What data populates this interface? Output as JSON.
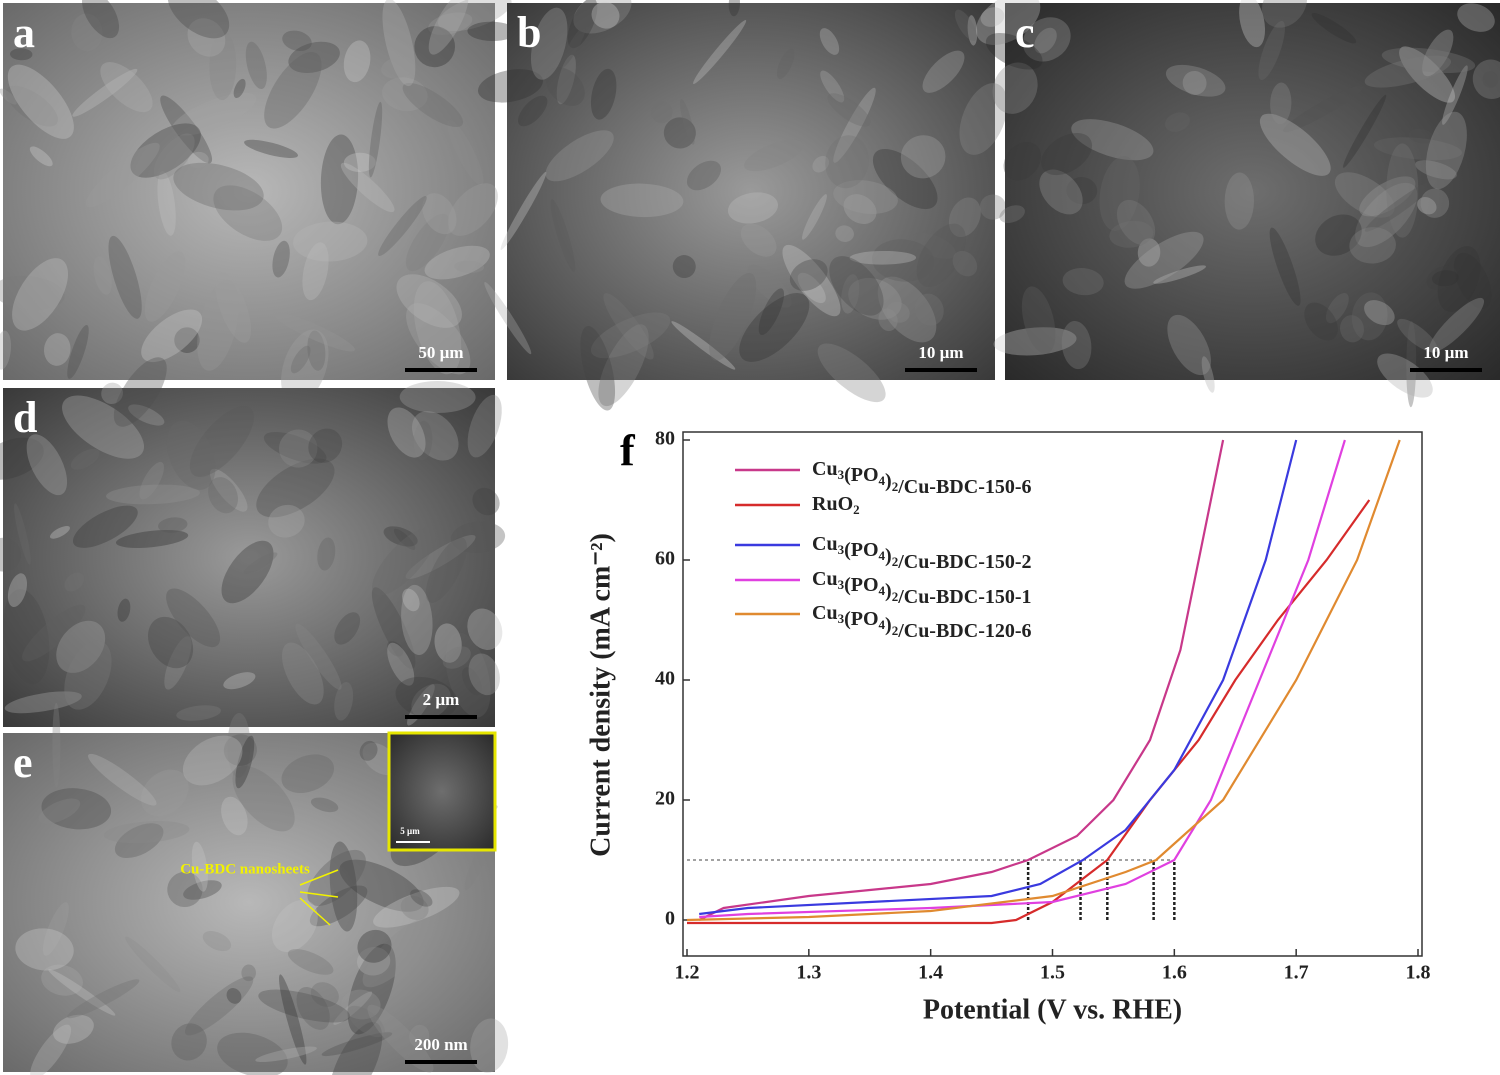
{
  "panels": [
    {
      "label": "a",
      "scale_bar": "50 µm"
    },
    {
      "label": "b",
      "scale_bar": "10 µm"
    },
    {
      "label": "c",
      "scale_bar": "10 µm"
    },
    {
      "label": "d",
      "scale_bar": "2 µm"
    },
    {
      "label": "e",
      "scale_bar": "200 nm",
      "inset_scale_bar": "5 µm",
      "annotation": "Cu-BDC nanosheets"
    }
  ],
  "chart_data": {
    "type": "line",
    "panel_label": "f",
    "x_label": "Potential (V vs. RHE)",
    "y_label": "Current density (mA cm⁻²)",
    "xlim": [
      1.2,
      1.8
    ],
    "ylim": [
      -6,
      80
    ],
    "xticks": [
      1.2,
      1.3,
      1.4,
      1.5,
      1.6,
      1.7,
      1.8
    ],
    "yticks": [
      0,
      20,
      40,
      60,
      80
    ],
    "series": [
      {
        "name": "Cu3(PO4)2/Cu-BDC-150-6",
        "color": "#c8388a",
        "x": [
          1.21,
          1.23,
          1.3,
          1.35,
          1.4,
          1.45,
          1.48,
          1.52,
          1.55,
          1.58,
          1.605,
          1.62,
          1.64
        ],
        "values": [
          0,
          2,
          4,
          5,
          6,
          8,
          10,
          14,
          20,
          30,
          45,
          60,
          80
        ]
      },
      {
        "name": "RuO2",
        "color": "#d62b2b",
        "x": [
          1.2,
          1.3,
          1.45,
          1.47,
          1.5,
          1.545,
          1.58,
          1.62,
          1.65,
          1.685,
          1.725,
          1.76
        ],
        "values": [
          -0.5,
          -0.5,
          -0.5,
          0,
          3,
          10,
          20,
          30,
          40,
          50,
          60,
          70
        ]
      },
      {
        "name": "Cu3(PO4)2/Cu-BDC-150-2",
        "color": "#3a3adf",
        "x": [
          1.21,
          1.25,
          1.35,
          1.45,
          1.49,
          1.525,
          1.56,
          1.6,
          1.64,
          1.675,
          1.7
        ],
        "values": [
          1,
          2,
          3,
          4,
          6,
          10,
          15,
          25,
          40,
          60,
          80
        ]
      },
      {
        "name": "Cu3(PO4)2/Cu-BDC-150-1",
        "color": "#e040e0",
        "x": [
          1.21,
          1.25,
          1.4,
          1.5,
          1.56,
          1.6,
          1.63,
          1.67,
          1.71,
          1.74
        ],
        "values": [
          0.5,
          1,
          2,
          3,
          6,
          10,
          20,
          40,
          60,
          80
        ]
      },
      {
        "name": "Cu3(PO4)2/Cu-BDC-120-6",
        "color": "#e08a30",
        "x": [
          1.2,
          1.3,
          1.4,
          1.5,
          1.56,
          1.585,
          1.64,
          1.7,
          1.75,
          1.785
        ],
        "values": [
          0,
          0.5,
          1.5,
          4,
          8,
          10,
          20,
          40,
          60,
          80
        ]
      }
    ],
    "reference_lines": {
      "y": 10,
      "x": [
        1.48,
        1.523,
        1.545,
        1.583,
        1.6
      ]
    }
  }
}
